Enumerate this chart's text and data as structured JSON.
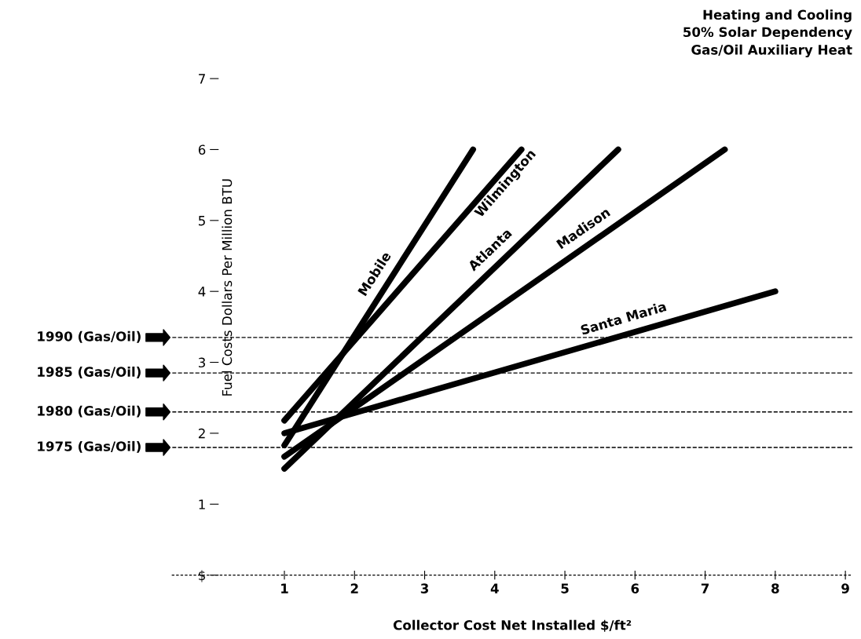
{
  "chart_data": {
    "type": "line",
    "title": "Heating and Cooling",
    "subtitle": "50% Solar Dependency\nGas/Oil Auxiliary Heat",
    "xlabel": "Collector Cost Net Installed $/ft²",
    "ylabel": "Fuel Costs Dollars Per Million BTU",
    "series": [
      {
        "name": "Mobile",
        "color": "#000000",
        "x": [
          1,
          3.69
        ],
        "values": [
          1.83,
          6.0
        ]
      },
      {
        "name": "Wilmington",
        "color": "#000000",
        "x": [
          1,
          4.38
        ],
        "values": [
          2.18,
          6.0
        ]
      },
      {
        "name": "Atlanta",
        "color": "#000000",
        "x": [
          1,
          5.76
        ],
        "values": [
          1.5,
          6.0
        ]
      },
      {
        "name": "Madison",
        "color": "#000000",
        "x": [
          1,
          7.28
        ],
        "values": [
          1.67,
          6.0
        ]
      },
      {
        "name": "Santa Maria",
        "color": "#000000",
        "x": [
          1,
          8
        ],
        "values": [
          2.0,
          4.0
        ]
      }
    ],
    "xlim": [
      -0.6,
      9.1
    ],
    "ylim": [
      0,
      7
    ],
    "xticks": [
      1,
      2,
      3,
      4,
      5,
      6,
      7,
      8,
      9
    ],
    "yticks": [
      {
        "value": 0,
        "label": "$"
      },
      1,
      2,
      3,
      4,
      5,
      6,
      7
    ],
    "ref_lines": [
      {
        "axis": "y",
        "value": 3.35,
        "label": "1990 (Gas/Oil)",
        "color": "#000000",
        "line_style": "dashed"
      },
      {
        "axis": "y",
        "value": 2.85,
        "label": "1985 (Gas/Oil)",
        "color": "#000000",
        "line_style": "dashed"
      },
      {
        "axis": "y",
        "value": 2.3,
        "label": "1980 (Gas/Oil)",
        "color": "#000000",
        "line_style": "dashed"
      },
      {
        "axis": "y",
        "value": 1.8,
        "label": "1975 (Gas/Oil)",
        "color": "#000000",
        "line_style": "dashed"
      }
    ],
    "grid": false,
    "legend": false,
    "marker": "none",
    "line_style": "solid"
  }
}
